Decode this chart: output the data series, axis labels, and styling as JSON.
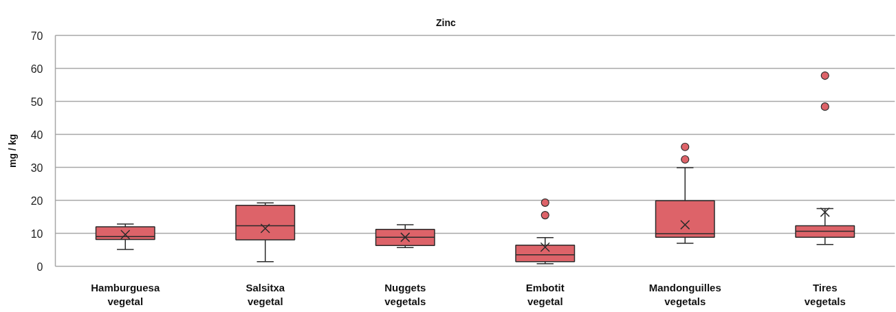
{
  "chart_data": {
    "type": "box",
    "title": "Zinc",
    "ylabel": "mg / kg",
    "categories": [
      "Hamburguesa\nvegetal",
      "Salsitxa\nvegetal",
      "Nuggets\nvegetals",
      "Embotit\nvegetal",
      "Mandonguilles\nvegetals",
      "Tires\nvegetals"
    ],
    "series": [
      {
        "color": "#dd6369",
        "boxes": [
          {
            "low": 5.1,
            "q1": 8.1,
            "median": 9.0,
            "q3": 12.0,
            "high": 12.8,
            "mean": 9.6
          },
          {
            "low": 1.4,
            "q1": 8.0,
            "median": 12.3,
            "q3": 18.5,
            "high": 19.2,
            "mean": 11.5
          },
          {
            "low": 5.7,
            "q1": 6.3,
            "median": 8.8,
            "q3": 11.2,
            "high": 12.6,
            "mean": 8.8
          },
          {
            "low": 0.8,
            "q1": 1.4,
            "median": 3.5,
            "q3": 6.4,
            "high": 8.7,
            "mean": 5.8,
            "outliers": [
              15.5,
              19.3
            ]
          },
          {
            "low": 7.0,
            "q1": 8.8,
            "median": 9.9,
            "q3": 19.9,
            "high": 29.9,
            "mean": 12.6,
            "outliers": [
              32.4,
              36.2
            ]
          },
          {
            "low": 6.6,
            "q1": 8.8,
            "median": 10.6,
            "q3": 12.3,
            "high": 17.5,
            "mean": 16.4,
            "outliers": [
              48.4,
              57.8
            ]
          }
        ]
      }
    ],
    "ylim": [
      0,
      70
    ],
    "yticks": [
      0,
      10,
      20,
      30,
      40,
      50,
      60,
      70
    ],
    "grid": "y"
  }
}
